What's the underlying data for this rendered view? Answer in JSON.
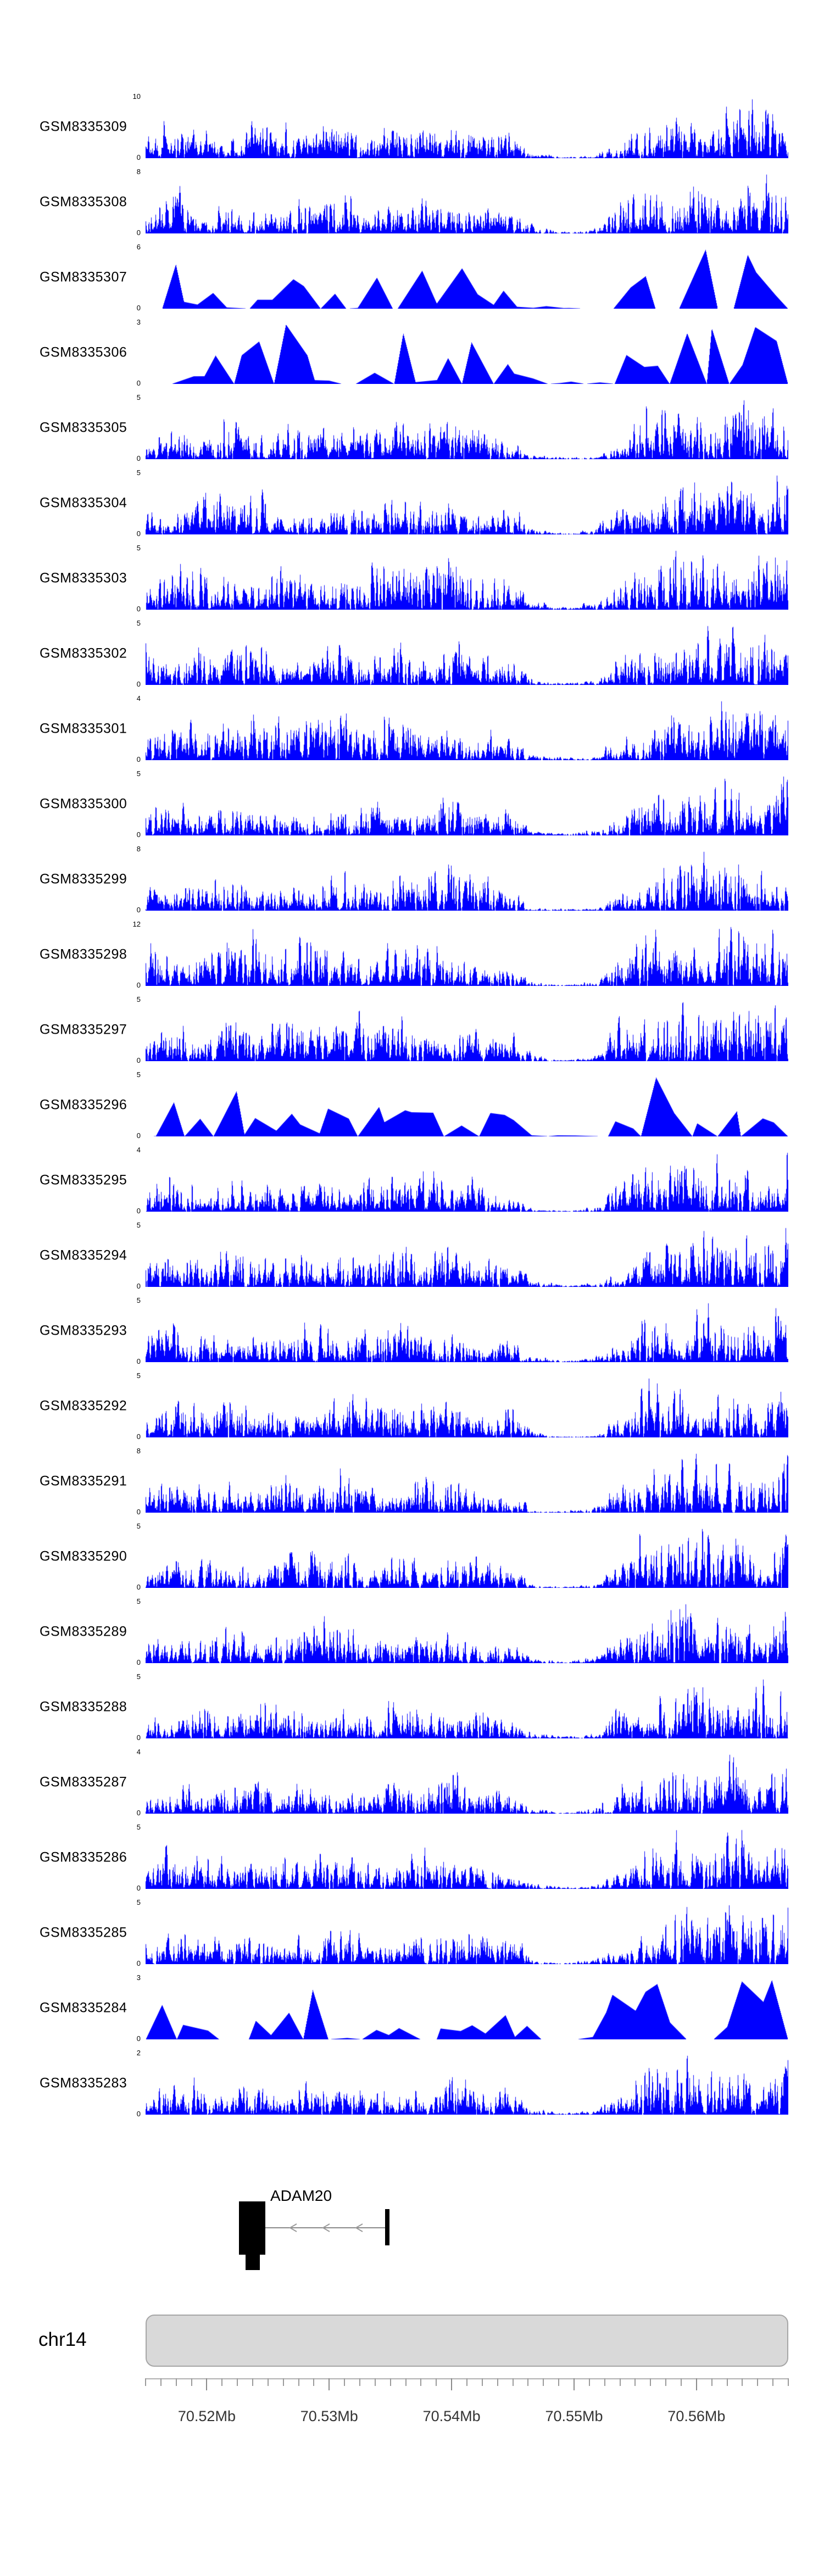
{
  "chart_data": {
    "type": "area",
    "signal_color": "#0000ff",
    "x_axis": {
      "unit": "Mb",
      "range_mb": [
        70.515,
        70.5675
      ],
      "minor_tick_step_mb": 0.00125,
      "major_ticks_mb": [
        70.52,
        70.53,
        70.54,
        70.55,
        70.56
      ],
      "major_tick_labels": [
        "70.52Mb",
        "70.53Mb",
        "70.54Mb",
        "70.55Mb",
        "70.56Mb"
      ]
    },
    "y_axis_min_label": "0",
    "tracks": [
      {
        "name": "GSM8335309",
        "ymax": 10,
        "seed": 8335309,
        "style": "dense"
      },
      {
        "name": "GSM8335308",
        "ymax": 8,
        "seed": 8335308,
        "style": "dense"
      },
      {
        "name": "GSM8335307",
        "ymax": 6,
        "seed": 8335307,
        "style": "sparse"
      },
      {
        "name": "GSM8335306",
        "ymax": 3,
        "seed": 8335306,
        "style": "sparse"
      },
      {
        "name": "GSM8335305",
        "ymax": 5,
        "seed": 8335305,
        "style": "dense"
      },
      {
        "name": "GSM8335304",
        "ymax": 5,
        "seed": 8335304,
        "style": "dense"
      },
      {
        "name": "GSM8335303",
        "ymax": 5,
        "seed": 8335303,
        "style": "dense"
      },
      {
        "name": "GSM8335302",
        "ymax": 5,
        "seed": 8335302,
        "style": "dense"
      },
      {
        "name": "GSM8335301",
        "ymax": 4,
        "seed": 8335301,
        "style": "dense"
      },
      {
        "name": "GSM8335300",
        "ymax": 5,
        "seed": 8335300,
        "style": "dense"
      },
      {
        "name": "GSM8335299",
        "ymax": 8,
        "seed": 8335299,
        "style": "dense"
      },
      {
        "name": "GSM8335298",
        "ymax": 12,
        "seed": 8335298,
        "style": "dense"
      },
      {
        "name": "GSM8335297",
        "ymax": 5,
        "seed": 8335297,
        "style": "dense"
      },
      {
        "name": "GSM8335296",
        "ymax": 5,
        "seed": 8335296,
        "style": "sparse"
      },
      {
        "name": "GSM8335295",
        "ymax": 4,
        "seed": 8335295,
        "style": "dense"
      },
      {
        "name": "GSM8335294",
        "ymax": 5,
        "seed": 8335294,
        "style": "dense"
      },
      {
        "name": "GSM8335293",
        "ymax": 5,
        "seed": 8335293,
        "style": "dense"
      },
      {
        "name": "GSM8335292",
        "ymax": 5,
        "seed": 8335292,
        "style": "dense"
      },
      {
        "name": "GSM8335291",
        "ymax": 8,
        "seed": 8335291,
        "style": "dense"
      },
      {
        "name": "GSM8335290",
        "ymax": 5,
        "seed": 8335290,
        "style": "dense"
      },
      {
        "name": "GSM8335289",
        "ymax": 5,
        "seed": 8335289,
        "style": "dense"
      },
      {
        "name": "GSM8335288",
        "ymax": 5,
        "seed": 8335288,
        "style": "dense"
      },
      {
        "name": "GSM8335287",
        "ymax": 4,
        "seed": 8335287,
        "style": "dense"
      },
      {
        "name": "GSM8335286",
        "ymax": 5,
        "seed": 8335286,
        "style": "dense"
      },
      {
        "name": "GSM8335285",
        "ymax": 5,
        "seed": 8335285,
        "style": "dense"
      },
      {
        "name": "GSM8335284",
        "ymax": 3,
        "seed": 8335284,
        "style": "sparse"
      },
      {
        "name": "GSM8335283",
        "ymax": 2,
        "seed": 8335283,
        "style": "dense"
      }
    ]
  },
  "gene_track": {
    "gene_name": "ADAM20",
    "strand": "minus"
  },
  "chromosome": {
    "label": "chr14"
  }
}
